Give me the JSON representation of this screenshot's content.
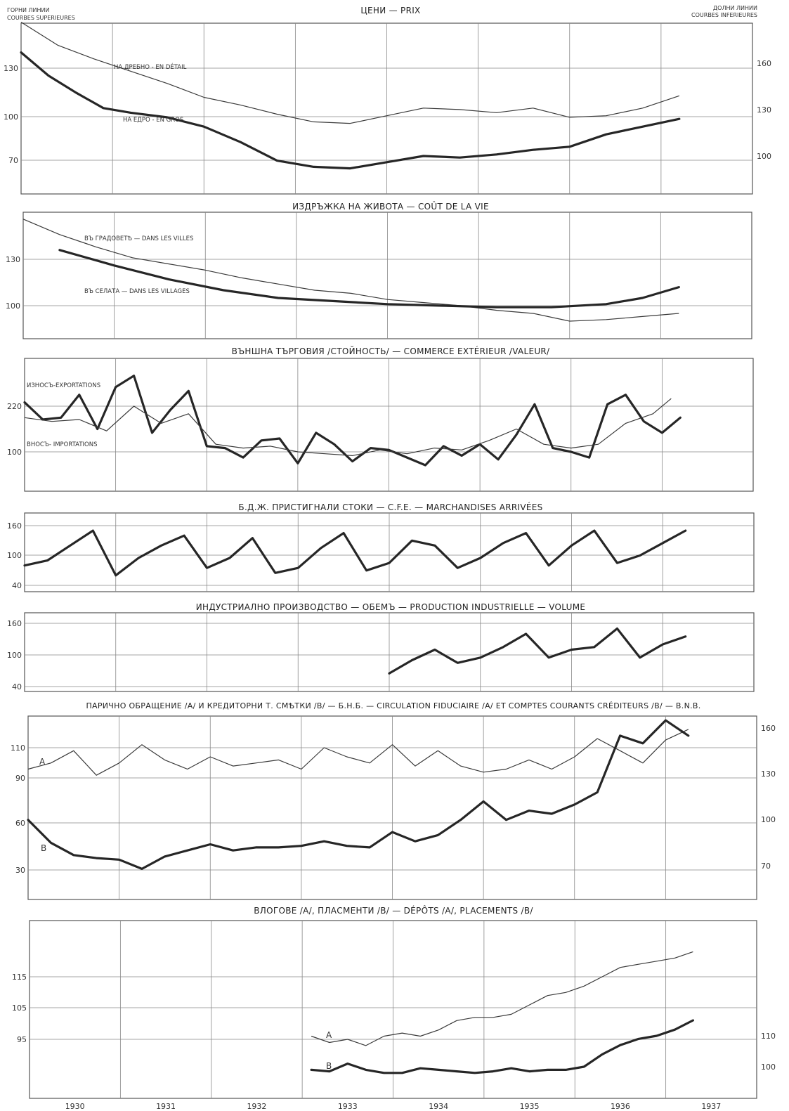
{
  "header": {
    "left_lines": [
      "ГОРНИ ЛИНИИ",
      "COURBES SUPERIEURES"
    ],
    "right_lines": [
      "ДОЛНИ ЛИНИИ",
      "COURBES INFERIEURES"
    ]
  },
  "years": [
    "1930",
    "1931",
    "1932",
    "1933",
    "1934",
    "1935",
    "1936",
    "1937"
  ],
  "chart_data": [
    {
      "type": "line",
      "title": "ЦЕНИ — PRIX",
      "left_ticks": [
        "130",
        "100",
        "70"
      ],
      "right_ticks": [
        "160",
        "130",
        "100"
      ],
      "series": [
        {
          "name": "НА ДРЕБНО - EN DÉTAIL",
          "axis": "left",
          "x": [
            1930.0,
            1930.4,
            1930.8,
            1931.2,
            1931.6,
            1932.0,
            1932.4,
            1932.8,
            1933.2,
            1933.6,
            1934.0,
            1934.4,
            1934.8,
            1935.2,
            1935.6,
            1936.0,
            1936.4,
            1936.8,
            1937.2
          ],
          "y": [
            160,
            145,
            136,
            128,
            120,
            111,
            106,
            100,
            95,
            94,
            99,
            104,
            103,
            101,
            104,
            98,
            99,
            104,
            112
          ]
        },
        {
          "name": "НА ЕДРО - EN GROS",
          "axis": "right",
          "x": [
            1930.0,
            1930.3,
            1930.6,
            1930.9,
            1931.2,
            1931.6,
            1932.0,
            1932.4,
            1932.8,
            1933.2,
            1933.6,
            1934.0,
            1934.4,
            1934.8,
            1935.2,
            1935.6,
            1936.0,
            1936.4,
            1936.8,
            1937.2
          ],
          "y": [
            167,
            152,
            141,
            131,
            128,
            125,
            119,
            109,
            97,
            93,
            92,
            96,
            100,
            99,
            101,
            104,
            106,
            114,
            119,
            124
          ]
        }
      ]
    },
    {
      "type": "line",
      "title": "ИЗДРЪЖКА НА ЖИВОТА — COÛT DE LA VIE",
      "left_ticks": [
        "130",
        "100"
      ],
      "series": [
        {
          "name": "ВЪ ГРАДОВЕТѢ — DANS LES VILLES",
          "x": [
            1930.0,
            1930.4,
            1930.8,
            1931.2,
            1931.6,
            1932.0,
            1932.4,
            1932.8,
            1933.2,
            1933.6,
            1934.0,
            1934.4,
            1934.8,
            1935.2,
            1935.6,
            1936.0,
            1936.4,
            1936.8,
            1937.2
          ],
          "y": [
            156,
            146,
            138,
            131,
            127,
            123,
            118,
            114,
            110,
            108,
            104,
            102,
            100,
            97,
            95,
            90,
            91,
            93,
            95
          ]
        },
        {
          "name": "ВЪ СЕЛАТА — DANS LES VILLAGES",
          "x": [
            1930.4,
            1931.0,
            1931.6,
            1932.2,
            1932.8,
            1933.4,
            1934.0,
            1934.6,
            1935.2,
            1935.8,
            1936.4,
            1936.8,
            1937.2
          ],
          "y": [
            136,
            126,
            117,
            110,
            105,
            103,
            101,
            100,
            99,
            99,
            101,
            105,
            112
          ]
        }
      ]
    },
    {
      "type": "line",
      "title": "ВЪНШНА ТЪРГОВИЯ /СТОЙНОСТЬ/ — COMMERCE EXTÉRIEUR /VALEUR/",
      "left_ticks": [
        "220",
        "100"
      ],
      "series": [
        {
          "name": "ИЗНОСЪ-EXPORTATIONS",
          "x": [
            1930.0,
            1930.2,
            1930.4,
            1930.6,
            1930.8,
            1931.0,
            1931.2,
            1931.4,
            1931.6,
            1931.8,
            1932.0,
            1932.2,
            1932.4,
            1932.6,
            1932.8,
            1933.0,
            1933.2,
            1933.4,
            1933.6,
            1933.8,
            1934.0,
            1934.2,
            1934.4,
            1934.6,
            1934.8,
            1935.0,
            1935.2,
            1935.4,
            1935.6,
            1935.8,
            1936.0,
            1936.2,
            1936.4,
            1936.6,
            1936.8,
            1937.0,
            1937.2
          ],
          "y": [
            230,
            185,
            190,
            250,
            160,
            270,
            300,
            150,
            210,
            260,
            115,
            110,
            85,
            130,
            135,
            70,
            150,
            120,
            75,
            110,
            105,
            85,
            65,
            115,
            90,
            120,
            80,
            145,
            225,
            110,
            100,
            85,
            225,
            250,
            180,
            150,
            190
          ]
        },
        {
          "name": "ВНОСЪ- IMPORTATIONS",
          "x": [
            1930.0,
            1930.3,
            1930.6,
            1930.9,
            1931.2,
            1931.5,
            1931.8,
            1932.1,
            1932.4,
            1932.7,
            1933.0,
            1933.3,
            1933.6,
            1933.9,
            1934.2,
            1934.5,
            1934.8,
            1935.1,
            1935.4,
            1935.7,
            1936.0,
            1936.3,
            1936.6,
            1936.9,
            1937.1
          ],
          "y": [
            190,
            180,
            185,
            155,
            220,
            175,
            200,
            120,
            110,
            115,
            100,
            95,
            90,
            105,
            95,
            110,
            105,
            130,
            160,
            120,
            110,
            120,
            175,
            200,
            240
          ]
        }
      ]
    },
    {
      "type": "line",
      "title": "Б.Д.Ж. ПРИСТИГНАЛИ СТОКИ — C.F.E. — MARCHANDISES ARRIVÉES",
      "left_ticks": [
        "160",
        "100",
        "40"
      ],
      "series": [
        {
          "name": "",
          "x": [
            1930.0,
            1930.25,
            1930.5,
            1930.75,
            1931.0,
            1931.25,
            1931.5,
            1931.75,
            1932.0,
            1932.25,
            1932.5,
            1932.75,
            1933.0,
            1933.25,
            1933.5,
            1933.75,
            1934.0,
            1934.25,
            1934.5,
            1934.75,
            1935.0,
            1935.25,
            1935.5,
            1935.75,
            1936.0,
            1936.25,
            1936.5,
            1936.75,
            1937.0,
            1937.25
          ],
          "y": [
            80,
            90,
            120,
            150,
            60,
            95,
            120,
            140,
            75,
            95,
            135,
            65,
            75,
            115,
            145,
            70,
            85,
            130,
            120,
            75,
            95,
            125,
            145,
            80,
            120,
            150,
            85,
            100,
            125,
            150
          ]
        }
      ]
    },
    {
      "type": "line",
      "title": "ИНДУСТРИАЛНО ПРОИЗВОДСТВО — ОБЕМЪ — PRODUCTION INDUSTRIELLE — VOLUME",
      "left_ticks": [
        "160",
        "100",
        "40"
      ],
      "series": [
        {
          "name": "",
          "x": [
            1934.0,
            1934.25,
            1934.5,
            1934.75,
            1935.0,
            1935.25,
            1935.5,
            1935.75,
            1936.0,
            1936.25,
            1936.5,
            1936.75,
            1937.0,
            1937.25
          ],
          "y": [
            65,
            90,
            110,
            85,
            95,
            115,
            140,
            95,
            110,
            115,
            150,
            95,
            120,
            135
          ]
        }
      ]
    },
    {
      "type": "line",
      "title": "ПАРИЧНО ОБРАЩЕНИЕ /А/ И КРЕДИТОРНИ Т. СМѢТКИ /В/ — Б.Н.Б. — CIRCULATION FIDUCIAIRE /A/ ET COMPTES COURANTS CRÉDITEURS /B/ — B.N.B.",
      "left_ticks": [
        "110",
        "90",
        "60",
        "30"
      ],
      "right_ticks": [
        "160",
        "130",
        "100",
        "70"
      ],
      "series": [
        {
          "name": "A",
          "axis": "left",
          "x": [
            1930.0,
            1930.25,
            1930.5,
            1930.75,
            1931.0,
            1931.25,
            1931.5,
            1931.75,
            1932.0,
            1932.25,
            1932.5,
            1932.75,
            1933.0,
            1933.25,
            1933.5,
            1933.75,
            1934.0,
            1934.25,
            1934.5,
            1934.75,
            1935.0,
            1935.25,
            1935.5,
            1935.75,
            1936.0,
            1936.25,
            1936.5,
            1936.75,
            1937.0,
            1937.25
          ],
          "y": [
            96,
            100,
            108,
            92,
            100,
            112,
            102,
            96,
            104,
            98,
            100,
            102,
            96,
            110,
            104,
            100,
            112,
            98,
            108,
            98,
            94,
            96,
            102,
            96,
            104,
            116,
            108,
            100,
            115,
            122
          ]
        },
        {
          "name": "B",
          "axis": "right",
          "x": [
            1930.0,
            1930.25,
            1930.5,
            1930.75,
            1931.0,
            1931.25,
            1931.5,
            1931.75,
            1932.0,
            1932.25,
            1932.5,
            1932.75,
            1933.0,
            1933.25,
            1933.5,
            1933.75,
            1934.0,
            1934.25,
            1934.5,
            1934.75,
            1935.0,
            1935.25,
            1935.5,
            1935.75,
            1936.0,
            1936.25,
            1936.5,
            1936.75,
            1937.0,
            1937.25
          ],
          "y": [
            100,
            85,
            77,
            75,
            74,
            68,
            76,
            80,
            84,
            80,
            82,
            82,
            83,
            86,
            83,
            82,
            92,
            86,
            90,
            100,
            112,
            100,
            106,
            104,
            110,
            118,
            155,
            150,
            165,
            155
          ]
        }
      ]
    },
    {
      "type": "line",
      "title": "ВЛОГОВЕ /А/, ПЛАСМЕНТИ /В/ — DÉPÔTS /A/, PLACEMENTS /B/",
      "left_ticks": [
        "115",
        "105",
        "95"
      ],
      "right_ticks": [
        "110",
        "100"
      ],
      "series": [
        {
          "name": "A",
          "axis": "left",
          "x": [
            1933.1,
            1933.3,
            1933.5,
            1933.7,
            1933.9,
            1934.1,
            1934.3,
            1934.5,
            1934.7,
            1934.9,
            1935.1,
            1935.3,
            1935.5,
            1935.7,
            1935.9,
            1936.1,
            1936.3,
            1936.5,
            1936.7,
            1936.9,
            1937.1,
            1937.3
          ],
          "y": [
            96,
            94,
            95,
            93,
            96,
            97,
            96,
            98,
            101,
            102,
            102,
            103,
            106,
            109,
            110,
            112,
            115,
            118,
            119,
            120,
            121,
            123
          ]
        },
        {
          "name": "B",
          "axis": "right",
          "x": [
            1933.1,
            1933.3,
            1933.5,
            1933.7,
            1933.9,
            1934.1,
            1934.3,
            1934.5,
            1934.7,
            1934.9,
            1935.1,
            1935.3,
            1935.5,
            1935.7,
            1935.9,
            1936.1,
            1936.3,
            1936.5,
            1936.7,
            1936.9,
            1937.1,
            1937.3
          ],
          "y": [
            99,
            98.5,
            101,
            99,
            98,
            98,
            99.5,
            99,
            98.5,
            98,
            98.5,
            99.5,
            98.5,
            99,
            99,
            100,
            104,
            107,
            109,
            110,
            112,
            115
          ]
        }
      ]
    }
  ]
}
